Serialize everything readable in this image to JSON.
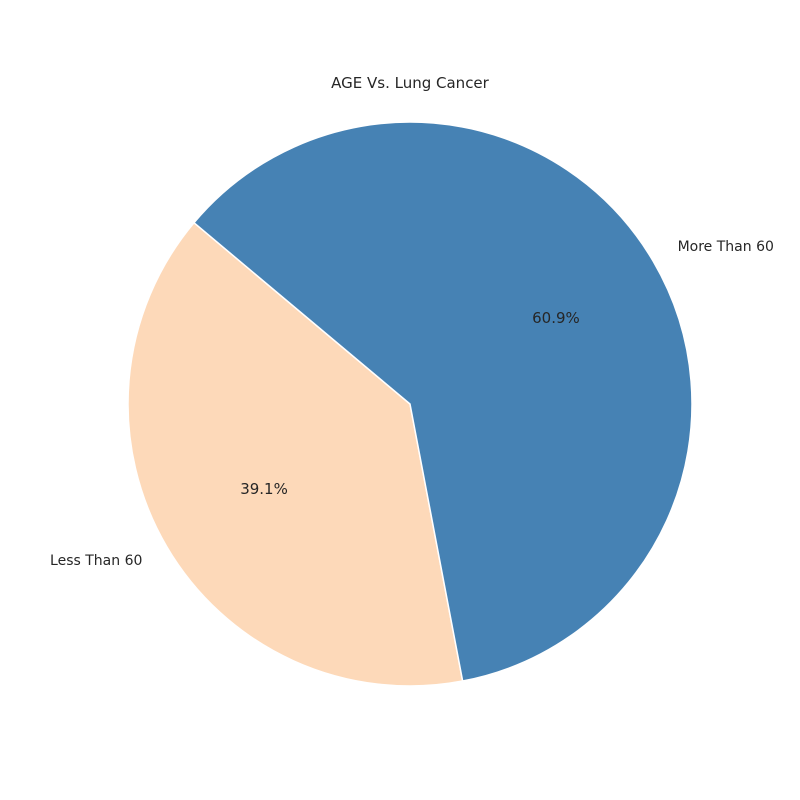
{
  "chart_data": {
    "type": "pie",
    "title": "AGE Vs. Lung Cancer",
    "slices": [
      {
        "label": "Less Than 60",
        "value": 39.1,
        "pct_label": "39.1%",
        "color": "#FDD9B9"
      },
      {
        "label": "More Than 60",
        "value": 60.9,
        "pct_label": "60.9%",
        "color": "#4682B4"
      }
    ],
    "start_angle_deg": 140,
    "direction": "counterclockwise",
    "legend": "none"
  }
}
